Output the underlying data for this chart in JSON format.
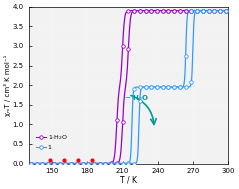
{
  "xlim": [
    130,
    300
  ],
  "ylim": [
    0.0,
    4.0
  ],
  "xlabel": "T / K",
  "ylabel": "χₘT / cm³ K mol⁻¹",
  "xticks": [
    150,
    180,
    210,
    240,
    270,
    300
  ],
  "yticks": [
    0.0,
    0.5,
    1.0,
    1.5,
    2.0,
    2.5,
    3.0,
    3.5,
    4.0
  ],
  "color_hydrate": "#9900CC",
  "color_dry": "#3399FF",
  "color_arrow": "#009999",
  "background": "#f2f2f2",
  "chi_max": 3.9,
  "hydrate_cool_T1": 205,
  "hydrate_cool_T2": 210,
  "hydrate_heat_T1": 210,
  "hydrate_heat_T2": 215,
  "dry_cool_T1": 218,
  "dry_cool_T2": 264,
  "dry_heat_T1": 224,
  "dry_heat_T2": 270,
  "hydrate_k": 1.2,
  "dry_k": 2.0,
  "red_dots_T": [
    148,
    160,
    172,
    184
  ],
  "red_dots_chi": [
    0.08,
    0.09,
    0.1,
    0.09
  ]
}
